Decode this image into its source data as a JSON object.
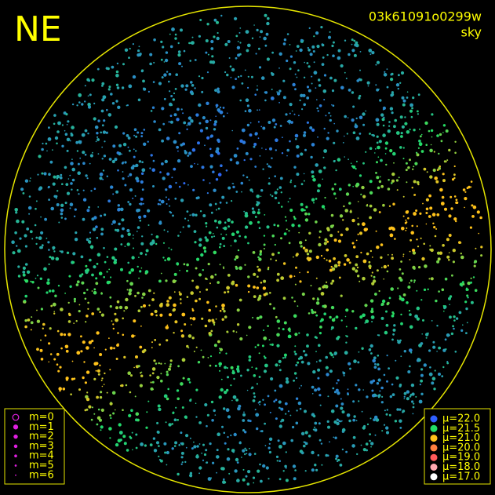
{
  "direction": "NE",
  "frame_id": "03k61091o0299w",
  "frame_label": "sky",
  "magnitude_legend": [
    "m=0",
    "m=1",
    "m=2",
    "m=3",
    "m=4",
    "m=5",
    "m=6"
  ],
  "magnitude_color": "#e020e0",
  "sky_brightness_legend": [
    {
      "label": "μ=22.0",
      "color": "#2f5fff"
    },
    {
      "label": "μ=21.5",
      "color": "#22dd66"
    },
    {
      "label": "μ=21.0",
      "color": "#ffc21a"
    },
    {
      "label": "μ=20.0",
      "color": "#ff8040"
    },
    {
      "label": "μ=19.0",
      "color": "#ff5a5a"
    },
    {
      "label": "μ=18.0",
      "color": "#ffa8b0"
    },
    {
      "label": "μ=17.0",
      "color": "#ffffff"
    }
  ]
}
